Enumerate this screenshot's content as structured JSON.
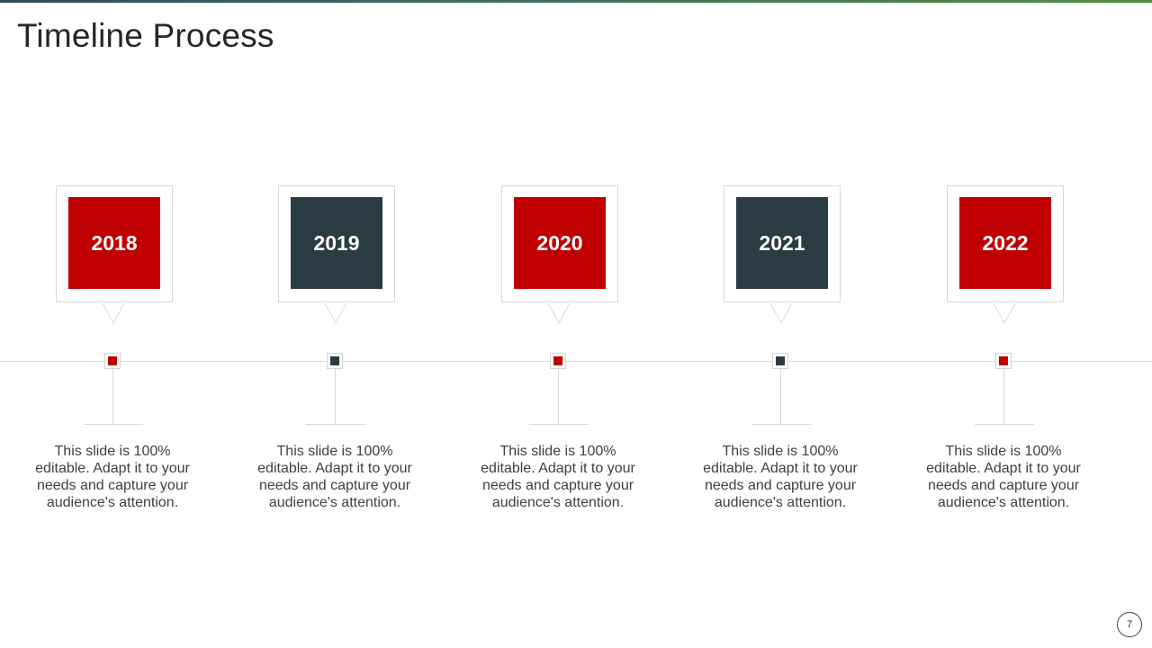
{
  "slide": {
    "title": "Timeline Process",
    "page_number": "7"
  },
  "colors": {
    "red": "#c00000",
    "dark": "#2b3b43",
    "line": "#d9d9d9",
    "text": "#404040"
  },
  "milestones": [
    {
      "year": "2018",
      "color": "#c00000",
      "text": "This slide is 100% editable. Adapt it to your needs and capture your audience's attention."
    },
    {
      "year": "2019",
      "color": "#2b3b43",
      "text": "This slide is 100% editable. Adapt it to your needs and capture your audience's attention."
    },
    {
      "year": "2020",
      "color": "#c00000",
      "text": "This slide is 100% editable. Adapt it to your needs and capture your audience's attention."
    },
    {
      "year": "2021",
      "color": "#2b3b43",
      "text": "This slide is 100% editable. Adapt it to your needs and capture your audience's attention."
    },
    {
      "year": "2022",
      "color": "#c00000",
      "text": "This slide is 100% editable. Adapt it to your needs and capture your audience's attention."
    }
  ]
}
